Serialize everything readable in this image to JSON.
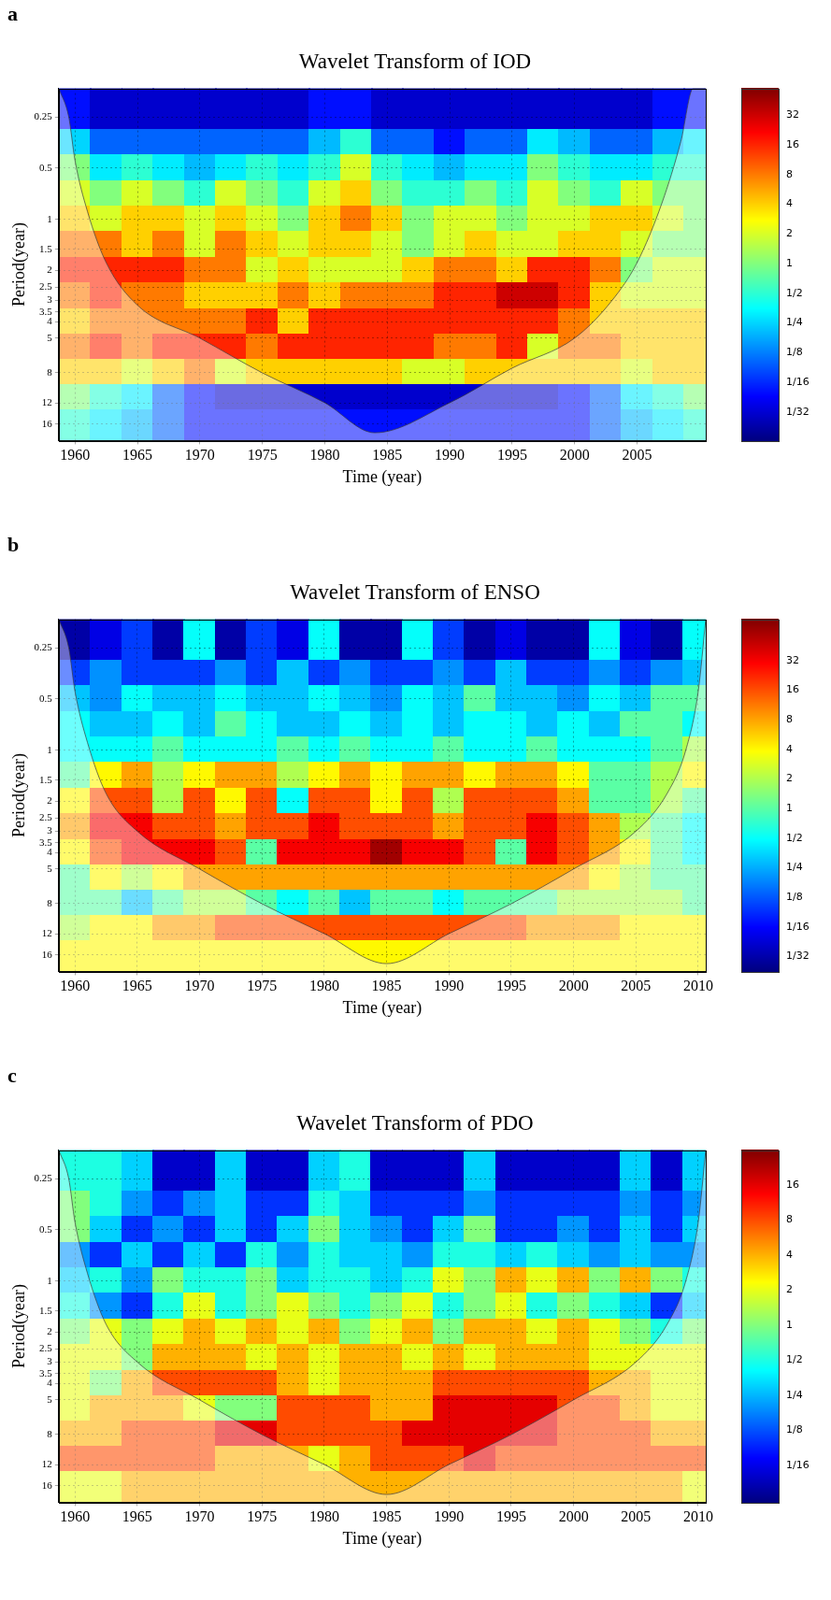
{
  "chart_data": [
    {
      "type": "heatmap",
      "panel_label": "a",
      "title": "Wavelet Transform of IOD",
      "x_label": "Time (year)",
      "y_label": "Period(year)",
      "log": "y",
      "grid": true,
      "xlim": [
        1958.7,
        2010.5
      ],
      "xticks": [
        1960,
        1965,
        1970,
        1975,
        1980,
        1985,
        1990,
        1995,
        2000,
        2005
      ],
      "ylim": [
        0.17,
        20
      ],
      "yticks": [
        0.25,
        0.5,
        1,
        1.5,
        2,
        2.5,
        3,
        3.5,
        4,
        5,
        8,
        12,
        16
      ],
      "x": [
        1960,
        1962.5,
        1965,
        1967.5,
        1970,
        1972.5,
        1975,
        1977.5,
        1980,
        1982.5,
        1985,
        1987.5,
        1990,
        1992.5,
        1995,
        1997.5,
        2000,
        2002.5,
        2005,
        2007.5,
        2010
      ],
      "y": [
        0.25,
        0.35,
        0.5,
        0.7,
        1,
        1.4,
        2,
        2.8,
        4,
        5.6,
        8,
        11,
        16
      ],
      "cells": [
        [
          0.05,
          0.03,
          0.03,
          0.03,
          0.03,
          0.03,
          0.03,
          0.03,
          0.05,
          0.05,
          0.03,
          0.03,
          0.03,
          0.03,
          0.03,
          0.03,
          0.03,
          0.03,
          0.03,
          0.05,
          0.05
        ],
        [
          0.25,
          0.1,
          0.1,
          0.1,
          0.1,
          0.1,
          0.1,
          0.1,
          0.2,
          0.5,
          0.1,
          0.1,
          0.05,
          0.1,
          0.1,
          0.3,
          0.2,
          0.1,
          0.1,
          0.2,
          0.3
        ],
        [
          1,
          0.3,
          0.5,
          0.3,
          0.2,
          0.3,
          0.5,
          0.3,
          0.5,
          2,
          0.5,
          0.3,
          0.2,
          0.3,
          0.3,
          1,
          0.5,
          0.3,
          0.3,
          0.5,
          0.5
        ],
        [
          2,
          1,
          2,
          1,
          0.5,
          2,
          1,
          0.5,
          2,
          4,
          1,
          0.5,
          0.5,
          1,
          0.5,
          2,
          1,
          0.5,
          2,
          1,
          1
        ],
        [
          4,
          2,
          4,
          4,
          2,
          4,
          2,
          1,
          4,
          8,
          4,
          1,
          2,
          2,
          1,
          2,
          2,
          4,
          4,
          2,
          1
        ],
        [
          8,
          8,
          4,
          8,
          2,
          8,
          4,
          2,
          4,
          4,
          2,
          1,
          2,
          4,
          2,
          2,
          4,
          4,
          2,
          1,
          1
        ],
        [
          16,
          16,
          16,
          16,
          8,
          8,
          2,
          4,
          2,
          2,
          2,
          4,
          8,
          8,
          4,
          16,
          16,
          8,
          1,
          2,
          2
        ],
        [
          8,
          16,
          8,
          8,
          4,
          4,
          4,
          8,
          4,
          8,
          8,
          8,
          16,
          16,
          32,
          32,
          16,
          4,
          2,
          2,
          2
        ],
        [
          4,
          8,
          8,
          8,
          8,
          8,
          16,
          4,
          16,
          16,
          16,
          16,
          16,
          16,
          16,
          16,
          8,
          4,
          4,
          4,
          4
        ],
        [
          8,
          16,
          8,
          16,
          16,
          16,
          8,
          16,
          16,
          16,
          16,
          16,
          8,
          8,
          16,
          2,
          8,
          8,
          4,
          4,
          4
        ],
        [
          4,
          4,
          2,
          4,
          8,
          2,
          4,
          4,
          4,
          4,
          4,
          2,
          2,
          4,
          4,
          4,
          4,
          4,
          2,
          4,
          4
        ],
        [
          1,
          0.5,
          0.3,
          0.1,
          0.05,
          0.03,
          0.03,
          0.03,
          0.03,
          0.03,
          0.03,
          0.03,
          0.03,
          0.03,
          0.03,
          0.03,
          0.05,
          0.1,
          0.3,
          0.5,
          1
        ],
        [
          0.5,
          0.3,
          0.2,
          0.1,
          0.05,
          0.05,
          0.05,
          0.05,
          0.05,
          0.05,
          0.05,
          0.05,
          0.05,
          0.05,
          0.05,
          0.05,
          0.05,
          0.1,
          0.2,
          0.3,
          0.5
        ]
      ],
      "colorbar": {
        "range": [
          0.016,
          60
        ],
        "ticks": [
          32,
          16,
          8,
          4,
          2,
          1,
          {
            "value": 0.5,
            "label": "1/2"
          },
          {
            "value": 0.25,
            "label": "1/4"
          },
          {
            "value": 0.125,
            "label": "1/8"
          },
          {
            "value": 0.0625,
            "label": "1/16"
          },
          {
            "value": 0.03125,
            "label": "1/32"
          }
        ]
      },
      "coi": {
        "x": [
          1958.7,
          1959.5,
          1960,
          1961,
          1962.5,
          1965,
          1970,
          1975,
          1980,
          1984,
          1990,
          1995,
          2000,
          2003,
          2005,
          2007,
          2008.5,
          2009.5,
          2010.5
        ],
        "values": [
          0.17,
          0.25,
          0.45,
          0.9,
          1.8,
          3.2,
          5,
          8,
          12,
          18,
          12,
          7.5,
          5,
          3,
          1.8,
          0.8,
          0.35,
          0.17,
          0.17
        ]
      }
    },
    {
      "type": "heatmap",
      "panel_label": "b",
      "title": "Wavelet Transform of ENSO",
      "x_label": "Time (year)",
      "y_label": "Period(year)",
      "log": "y",
      "grid": true,
      "xlim": [
        1958.7,
        2010.6
      ],
      "xticks": [
        1960,
        1965,
        1970,
        1975,
        1980,
        1985,
        1990,
        1995,
        2000,
        2005,
        2010
      ],
      "ylim": [
        0.17,
        20
      ],
      "yticks": [
        0.25,
        0.5,
        1,
        1.5,
        2,
        2.5,
        3,
        3.5,
        4,
        5,
        8,
        12,
        16
      ],
      "x": [
        1960,
        1962.5,
        1965,
        1967.5,
        1970,
        1972.5,
        1975,
        1977.5,
        1980,
        1982.5,
        1985,
        1987.5,
        1990,
        1992.5,
        1995,
        1997.5,
        2000,
        2002.5,
        2005,
        2007.5,
        2010
      ],
      "y": [
        0.25,
        0.35,
        0.5,
        0.7,
        1,
        1.4,
        2,
        2.8,
        4,
        5.6,
        8,
        11,
        16
      ],
      "cells": [
        [
          0.03,
          0.05,
          0.1,
          0.03,
          0.5,
          0.03,
          0.1,
          0.05,
          0.5,
          0.03,
          0.03,
          0.5,
          0.1,
          0.03,
          0.05,
          0.03,
          0.03,
          0.5,
          0.05,
          0.03,
          0.5
        ],
        [
          0.1,
          0.2,
          0.1,
          0.1,
          0.1,
          0.2,
          0.1,
          0.3,
          0.1,
          0.2,
          0.1,
          0.1,
          0.2,
          0.1,
          0.3,
          0.1,
          0.1,
          0.2,
          0.1,
          0.2,
          0.3
        ],
        [
          0.3,
          0.2,
          0.5,
          0.3,
          0.3,
          0.5,
          0.3,
          0.3,
          0.5,
          0.3,
          0.2,
          0.5,
          0.3,
          1,
          0.3,
          0.3,
          0.2,
          0.5,
          0.3,
          1,
          1
        ],
        [
          0.5,
          0.3,
          0.3,
          0.5,
          0.3,
          1,
          0.5,
          0.3,
          0.3,
          0.5,
          0.3,
          0.5,
          0.3,
          0.5,
          0.5,
          0.3,
          0.5,
          0.3,
          1,
          1,
          0.5
        ],
        [
          0.5,
          0.5,
          0.5,
          1,
          0.5,
          0.5,
          0.5,
          1,
          0.5,
          1,
          0.5,
          0.5,
          1,
          0.5,
          0.5,
          1,
          0.5,
          0.5,
          0.5,
          1,
          2
        ],
        [
          1,
          4,
          8,
          2,
          4,
          8,
          8,
          2,
          4,
          8,
          4,
          8,
          8,
          4,
          8,
          8,
          4,
          1,
          1,
          2,
          4
        ],
        [
          4,
          16,
          16,
          2,
          16,
          4,
          16,
          0.5,
          16,
          16,
          4,
          16,
          2,
          16,
          16,
          16,
          8,
          1,
          1,
          2,
          1
        ],
        [
          8,
          32,
          32,
          16,
          16,
          8,
          16,
          16,
          32,
          16,
          16,
          16,
          8,
          16,
          16,
          32,
          16,
          8,
          2,
          1,
          0.5
        ],
        [
          4,
          16,
          32,
          32,
          32,
          16,
          1,
          32,
          32,
          32,
          64,
          32,
          32,
          16,
          1,
          32,
          16,
          8,
          4,
          1,
          0.5
        ],
        [
          1,
          4,
          2,
          4,
          8,
          8,
          8,
          8,
          8,
          8,
          8,
          8,
          8,
          8,
          8,
          8,
          8,
          4,
          2,
          1,
          1
        ],
        [
          1,
          1,
          0.3,
          1,
          2,
          2,
          1,
          0.5,
          1,
          0.3,
          1,
          1,
          0.5,
          1,
          1,
          1,
          2,
          2,
          2,
          2,
          1
        ],
        [
          2,
          4,
          4,
          8,
          8,
          16,
          16,
          16,
          16,
          16,
          16,
          16,
          16,
          16,
          16,
          8,
          8,
          8,
          4,
          4,
          4
        ],
        [
          4,
          4,
          4,
          4,
          4,
          4,
          4,
          4,
          4,
          4,
          4,
          4,
          4,
          4,
          4,
          4,
          4,
          4,
          4,
          4,
          4
        ]
      ],
      "colorbar": {
        "range": [
          0.022,
          84
        ],
        "ticks": [
          32,
          16,
          8,
          4,
          2,
          1,
          {
            "value": 0.5,
            "label": "1/2"
          },
          {
            "value": 0.25,
            "label": "1/4"
          },
          {
            "value": 0.125,
            "label": "1/8"
          },
          {
            "value": 0.0625,
            "label": "1/16"
          },
          {
            "value": 0.03125,
            "label": "1/32"
          }
        ]
      },
      "coi": {
        "x": [
          1958.7,
          1959.5,
          1960,
          1961,
          1962.5,
          1965,
          1970,
          1975,
          1980,
          1985,
          1990,
          1995,
          2000,
          2005,
          2007.5,
          2009,
          2010,
          2010.6
        ],
        "values": [
          0.17,
          0.25,
          0.45,
          0.9,
          1.8,
          3,
          5,
          8,
          12,
          18,
          12,
          8,
          5,
          3,
          1.8,
          1,
          0.45,
          0.17
        ]
      }
    },
    {
      "type": "heatmap",
      "panel_label": "c",
      "title": "Wavelet Transform of PDO",
      "x_label": "Time (year)",
      "y_label": "Period(year)",
      "log": "y",
      "grid": true,
      "xlim": [
        1958.7,
        2010.6
      ],
      "xticks": [
        1960,
        1965,
        1970,
        1975,
        1980,
        1985,
        1990,
        1995,
        2000,
        2005,
        2010
      ],
      "ylim": [
        0.17,
        20
      ],
      "yticks": [
        0.25,
        0.5,
        1,
        1.5,
        2,
        2.5,
        3,
        3.5,
        4,
        5,
        8,
        12,
        16
      ],
      "x": [
        1960,
        1962.5,
        1965,
        1967.5,
        1970,
        1972.5,
        1975,
        1977.5,
        1980,
        1982.5,
        1985,
        1987.5,
        1990,
        1992.5,
        1995,
        1997.5,
        2000,
        2002.5,
        2005,
        2007.5,
        2010
      ],
      "y": [
        0.25,
        0.35,
        0.5,
        0.7,
        1,
        1.4,
        2,
        2.8,
        4,
        5.6,
        8,
        11,
        16
      ],
      "cells": [
        [
          0.5,
          0.5,
          0.3,
          0.05,
          0.05,
          0.3,
          0.05,
          0.05,
          0.3,
          0.5,
          0.05,
          0.05,
          0.05,
          0.3,
          0.05,
          0.05,
          0.05,
          0.05,
          0.3,
          0.05,
          0.3
        ],
        [
          1,
          0.5,
          0.2,
          0.1,
          0.2,
          0.3,
          0.1,
          0.1,
          0.5,
          0.3,
          0.1,
          0.1,
          0.1,
          0.2,
          0.1,
          0.1,
          0.1,
          0.1,
          0.2,
          0.1,
          0.2
        ],
        [
          1,
          0.3,
          0.1,
          0.2,
          0.1,
          0.3,
          0.1,
          0.3,
          1,
          0.3,
          0.2,
          0.1,
          0.3,
          1,
          0.1,
          0.1,
          0.2,
          0.1,
          0.3,
          0.1,
          0.3
        ],
        [
          0.2,
          0.1,
          0.3,
          0.1,
          0.3,
          0.1,
          0.5,
          0.2,
          0.5,
          0.3,
          0.3,
          0.2,
          0.5,
          0.5,
          0.3,
          0.5,
          0.3,
          0.2,
          0.3,
          0.2,
          0.2
        ],
        [
          0.3,
          0.5,
          0.2,
          1,
          0.5,
          0.5,
          1,
          0.3,
          0.5,
          0.5,
          0.3,
          0.5,
          2,
          1,
          4,
          2,
          4,
          1,
          4,
          1,
          0.5
        ],
        [
          0.5,
          0.2,
          0.1,
          0.5,
          2,
          0.5,
          1,
          2,
          1,
          0.5,
          1,
          2,
          0.5,
          1,
          2,
          0.5,
          1,
          0.5,
          0.3,
          0.1,
          0.3
        ],
        [
          1,
          2,
          1,
          2,
          4,
          2,
          4,
          2,
          4,
          1,
          2,
          4,
          1,
          4,
          4,
          2,
          4,
          2,
          1,
          0.5,
          1
        ],
        [
          2,
          2,
          1,
          4,
          4,
          4,
          2,
          4,
          2,
          4,
          4,
          2,
          4,
          2,
          4,
          4,
          4,
          2,
          2,
          2,
          2
        ],
        [
          2,
          1,
          4,
          8,
          8,
          8,
          8,
          4,
          2,
          4,
          4,
          4,
          8,
          8,
          8,
          8,
          8,
          4,
          4,
          2,
          2
        ],
        [
          2,
          4,
          4,
          4,
          2,
          1,
          1,
          8,
          8,
          8,
          4,
          4,
          16,
          16,
          16,
          16,
          8,
          8,
          4,
          2,
          2
        ],
        [
          4,
          4,
          8,
          8,
          8,
          16,
          16,
          8,
          8,
          8,
          8,
          16,
          16,
          16,
          16,
          16,
          8,
          8,
          8,
          4,
          4
        ],
        [
          8,
          8,
          8,
          8,
          8,
          4,
          4,
          4,
          2,
          4,
          8,
          8,
          8,
          16,
          8,
          8,
          8,
          8,
          8,
          8,
          8
        ],
        [
          2,
          2,
          4,
          4,
          4,
          4,
          4,
          4,
          4,
          4,
          4,
          4,
          4,
          4,
          4,
          4,
          4,
          4,
          4,
          4,
          2
        ]
      ],
      "colorbar": {
        "range": [
          0.03,
          32
        ],
        "ticks": [
          16,
          8,
          4,
          2,
          1,
          {
            "value": 0.5,
            "label": "1/2"
          },
          {
            "value": 0.25,
            "label": "1/4"
          },
          {
            "value": 0.125,
            "label": "1/8"
          },
          {
            "value": 0.0625,
            "label": "1/16"
          }
        ]
      },
      "coi": {
        "x": [
          1958.7,
          1959.5,
          1960,
          1961,
          1962.5,
          1965,
          1970,
          1975,
          1980,
          1985,
          1990,
          1995,
          2000,
          2005,
          2007.5,
          2009,
          2010,
          2010.6
        ],
        "values": [
          0.17,
          0.25,
          0.45,
          0.9,
          1.8,
          3,
          5,
          8,
          12,
          18,
          12,
          8,
          5,
          3,
          1.8,
          1,
          0.45,
          0.17
        ]
      }
    }
  ]
}
